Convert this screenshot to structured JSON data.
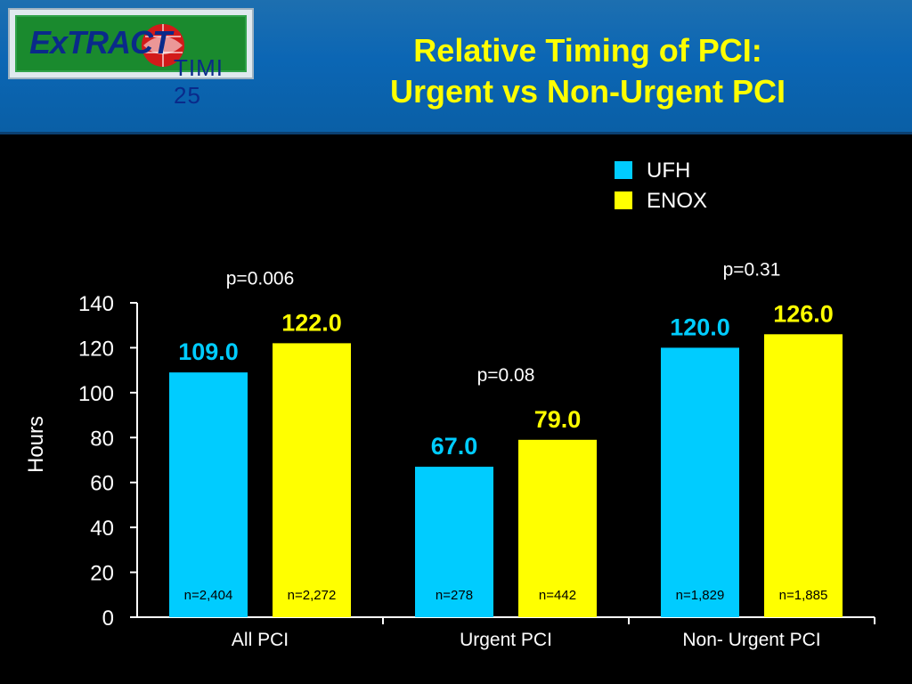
{
  "logo": {
    "text_main": "ExTRACT",
    "text_sub": "TIMI 25"
  },
  "title": {
    "line1": "Relative Timing of PCI:",
    "line2": "Urgent vs Non-Urgent PCI"
  },
  "colors": {
    "ufh": "#00ccff",
    "enox": "#ffff00",
    "background": "#000000",
    "header": "#0b66b4",
    "title": "#ffff00"
  },
  "chart_data": {
    "type": "bar",
    "ylabel": "Hours",
    "ylim": [
      0,
      140
    ],
    "yticks": [
      "0",
      "20",
      "40",
      "60",
      "80",
      "100",
      "120",
      "140"
    ],
    "categories": [
      "All  PCI",
      "Urgent PCI",
      "Non- Urgent PCI"
    ],
    "legend_position": "top-right",
    "series": [
      {
        "name": "UFH",
        "color": "#00ccff",
        "values": [
          109.0,
          67.0,
          120.0
        ],
        "value_labels": [
          "109.0",
          "67.0",
          "120.0"
        ],
        "n_labels": [
          "n=2,404",
          "n=278",
          "n=1,829"
        ]
      },
      {
        "name": "ENOX",
        "color": "#ffff00",
        "values": [
          122.0,
          79.0,
          126.0
        ],
        "value_labels": [
          "122.0",
          "79.0",
          "126.0"
        ],
        "n_labels": [
          "n=2,272",
          "n=442",
          "n=1,885"
        ]
      }
    ],
    "p_values": [
      "p=0.006",
      "p=0.08",
      "p=0.31"
    ]
  }
}
